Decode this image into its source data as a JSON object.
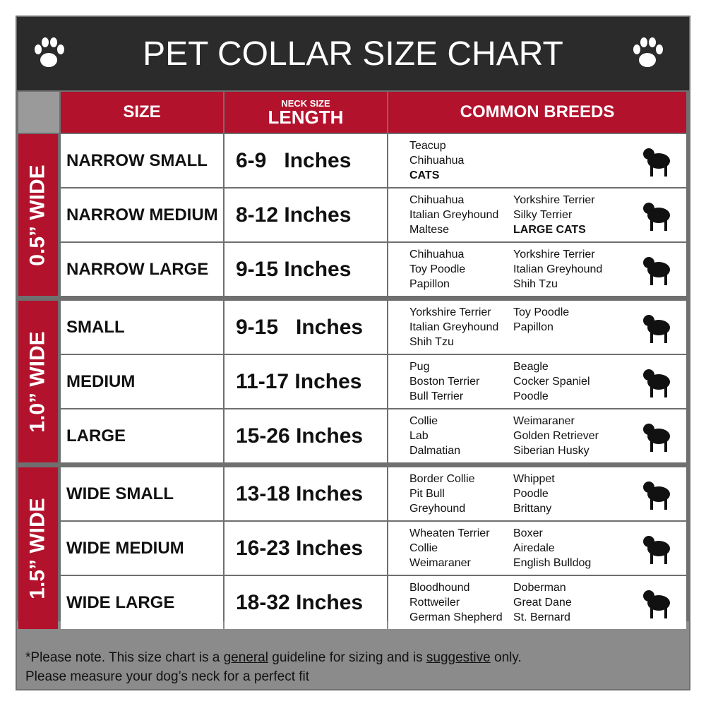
{
  "header": {
    "title": "PET COLLAR SIZE CHART"
  },
  "table": {
    "headers": {
      "size": "SIZE",
      "neck_size": "NECK SIZE",
      "length": "LENGTH",
      "breeds": "COMMON BREEDS"
    },
    "groups": [
      {
        "label": "0.5” WIDE",
        "rows": [
          {
            "size": "NARROW SMALL",
            "length": "6-9   Inches",
            "breeds": [
              [
                {
                  "text": "Teacup"
                },
                {
                  "text": "Chihuahua"
                },
                {
                  "text": "CATS",
                  "bold": true
                }
              ]
            ]
          },
          {
            "size": "NARROW MEDIUM",
            "length": "8-12 Inches",
            "breeds": [
              [
                {
                  "text": "Chihuahua"
                },
                {
                  "text": "Italian Greyhound"
                },
                {
                  "text": "Maltese"
                }
              ],
              [
                {
                  "text": "Yorkshire Terrier"
                },
                {
                  "text": "Silky Terrier"
                },
                {
                  "text": "LARGE CATS",
                  "bold": true
                }
              ]
            ]
          },
          {
            "size": "NARROW LARGE",
            "length": "9-15 Inches",
            "breeds": [
              [
                {
                  "text": "Chihuahua"
                },
                {
                  "text": "Toy Poodle"
                },
                {
                  "text": "Papillon"
                }
              ],
              [
                {
                  "text": "Yorkshire Terrier"
                },
                {
                  "text": "Italian Greyhound"
                },
                {
                  "text": "Shih Tzu"
                }
              ]
            ]
          }
        ]
      },
      {
        "label": "1.0” WIDE",
        "rows": [
          {
            "size": "SMALL",
            "length": "9-15   Inches",
            "breeds": [
              [
                {
                  "text": "Yorkshire Terrier"
                },
                {
                  "text": "Italian Greyhound"
                },
                {
                  "text": "Shih Tzu"
                }
              ],
              [
                {
                  "text": "Toy Poodle"
                },
                {
                  "text": "Papillon"
                }
              ]
            ]
          },
          {
            "size": "MEDIUM",
            "length": "11-17 Inches",
            "breeds": [
              [
                {
                  "text": "Pug"
                },
                {
                  "text": "Boston Terrier"
                },
                {
                  "text": "Bull Terrier"
                }
              ],
              [
                {
                  "text": "Beagle"
                },
                {
                  "text": "Cocker Spaniel"
                },
                {
                  "text": "Poodle"
                }
              ]
            ]
          },
          {
            "size": "LARGE",
            "length": "15-26 Inches",
            "breeds": [
              [
                {
                  "text": "Collie"
                },
                {
                  "text": "Lab"
                },
                {
                  "text": "Dalmatian"
                }
              ],
              [
                {
                  "text": "Weimaraner"
                },
                {
                  "text": "Golden Retriever"
                },
                {
                  "text": "Siberian Husky"
                }
              ]
            ]
          }
        ]
      },
      {
        "label": "1.5” WIDE",
        "rows": [
          {
            "size": "WIDE SMALL",
            "length": "13-18 Inches",
            "breeds": [
              [
                {
                  "text": "Border Collie"
                },
                {
                  "text": "Pit Bull"
                },
                {
                  "text": "Greyhound"
                }
              ],
              [
                {
                  "text": "Whippet"
                },
                {
                  "text": "Poodle"
                },
                {
                  "text": "Brittany"
                }
              ]
            ]
          },
          {
            "size": "WIDE MEDIUM",
            "length": "16-23 Inches",
            "breeds": [
              [
                {
                  "text": "Wheaten Terrier"
                },
                {
                  "text": "Collie"
                },
                {
                  "text": "Weimaraner"
                }
              ],
              [
                {
                  "text": "Boxer"
                },
                {
                  "text": "Airedale"
                },
                {
                  "text": "English Bulldog"
                }
              ]
            ]
          },
          {
            "size": "WIDE LARGE",
            "length": "18-32 Inches",
            "breeds": [
              [
                {
                  "text": "Bloodhound"
                },
                {
                  "text": "Rottweiler"
                },
                {
                  "text": "German Shepherd"
                }
              ],
              [
                {
                  "text": "Doberman"
                },
                {
                  "text": "Great Dane"
                },
                {
                  "text": "St. Bernard"
                }
              ]
            ]
          }
        ]
      }
    ]
  },
  "footer": {
    "note": [
      {
        "text": "*Please note. This size chart is a "
      },
      {
        "text": "general",
        "underline": true
      },
      {
        "text": " guideline for sizing and is "
      },
      {
        "text": "suggestive",
        "underline": true
      },
      {
        "text": " only."
      }
    ],
    "line2": "Please measure your dog’s neck for a perfect fit"
  }
}
